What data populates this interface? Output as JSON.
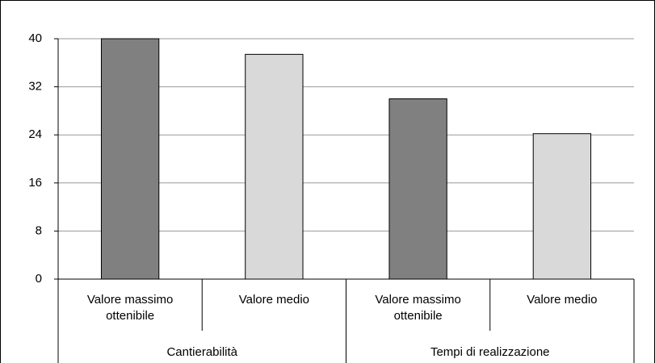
{
  "chart_data": {
    "type": "bar",
    "categories": [
      "Valore massimo ottenibile",
      "Valore medio",
      "Valore massimo ottenibile",
      "Valore medio"
    ],
    "groups": [
      "Cantierabilità",
      "Tempi di realizzazione"
    ],
    "values": [
      40,
      37.4,
      30,
      24.2
    ],
    "colors": [
      "#808080",
      "#d9d9d9",
      "#808080",
      "#d9d9d9"
    ],
    "ylim": [
      0,
      40
    ],
    "yticks": [
      0,
      8,
      16,
      24,
      32,
      40
    ],
    "grid": true
  }
}
